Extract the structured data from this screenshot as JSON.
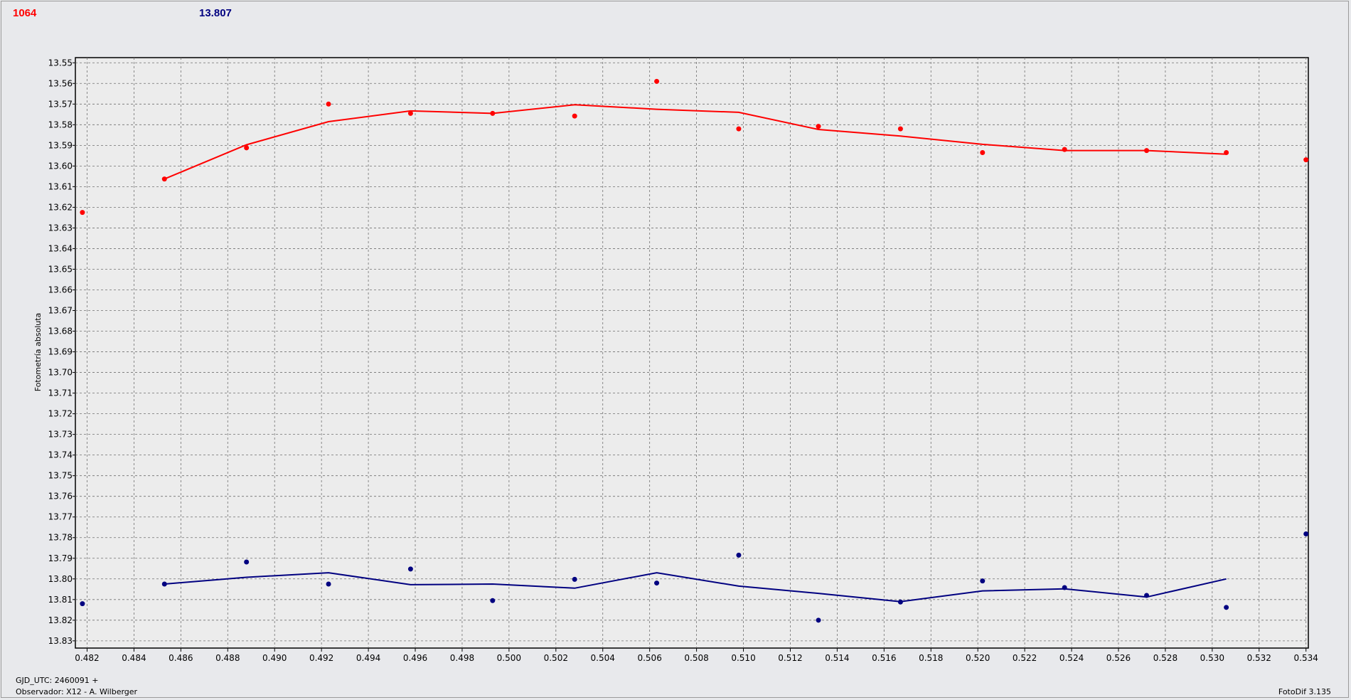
{
  "header": {
    "red_value": "1064",
    "blue_value": "13.807"
  },
  "footer": {
    "gjd": "GJD_UTC: 2460091 +",
    "observer": "Observador: X12 - A. Wilberger",
    "version": "FotoDif 3.135"
  },
  "chart_data": {
    "type": "scatter",
    "title": "",
    "xlabel": "",
    "ylabel": "Fotometría absoluta",
    "xlim": [
      0.4815,
      0.5341
    ],
    "ylim": [
      13.5475,
      13.8335
    ],
    "y_inverted": true,
    "grid": true,
    "x_ticks": [
      "0.482",
      "0.484",
      "0.486",
      "0.488",
      "0.490",
      "0.492",
      "0.494",
      "0.496",
      "0.498",
      "0.500",
      "0.502",
      "0.504",
      "0.506",
      "0.508",
      "0.510",
      "0.512",
      "0.514",
      "0.516",
      "0.518",
      "0.520",
      "0.522",
      "0.524",
      "0.526",
      "0.528",
      "0.530",
      "0.532",
      "0.534"
    ],
    "y_ticks": [
      "13.55",
      "13.56",
      "13.57",
      "13.58",
      "13.59",
      "13.60",
      "13.61",
      "13.62",
      "13.63",
      "13.64",
      "13.65",
      "13.66",
      "13.67",
      "13.68",
      "13.69",
      "13.70",
      "13.71",
      "13.72",
      "13.73",
      "13.74",
      "13.75",
      "13.76",
      "13.77",
      "13.78",
      "13.79",
      "13.80",
      "13.81",
      "13.82",
      "13.83"
    ],
    "series": [
      {
        "color": "#ff0000",
        "points": [
          [
            0.4818,
            13.6225
          ],
          [
            0.4853,
            13.6063
          ],
          [
            0.4888,
            13.5912
          ],
          [
            0.4923,
            13.57
          ],
          [
            0.4958,
            13.5745
          ],
          [
            0.4993,
            13.5745
          ],
          [
            0.5028,
            13.5758
          ],
          [
            0.5063,
            13.559
          ],
          [
            0.5098,
            13.582
          ],
          [
            0.5132,
            13.5808
          ],
          [
            0.5167,
            13.582
          ],
          [
            0.5202,
            13.5935
          ],
          [
            0.5237,
            13.592
          ],
          [
            0.5272,
            13.5925
          ],
          [
            0.5306,
            13.5935
          ],
          [
            0.534,
            13.597
          ]
        ],
        "line": [
          [
            0.4853,
            13.6063
          ],
          [
            0.4888,
            13.5897
          ],
          [
            0.4923,
            13.5785
          ],
          [
            0.4958,
            13.5733
          ],
          [
            0.4993,
            13.5745
          ],
          [
            0.5028,
            13.5703
          ],
          [
            0.5063,
            13.5725
          ],
          [
            0.5098,
            13.574
          ],
          [
            0.5132,
            13.5823
          ],
          [
            0.5167,
            13.5855
          ],
          [
            0.5202,
            13.5895
          ],
          [
            0.5237,
            13.5925
          ],
          [
            0.5272,
            13.5925
          ],
          [
            0.5306,
            13.5943
          ]
        ]
      },
      {
        "color": "#000080",
        "points": [
          [
            0.4818,
            13.812
          ],
          [
            0.4853,
            13.8025
          ],
          [
            0.4888,
            13.7918
          ],
          [
            0.4923,
            13.8025
          ],
          [
            0.4958,
            13.7952
          ],
          [
            0.4993,
            13.8105
          ],
          [
            0.5028,
            13.8002
          ],
          [
            0.5063,
            13.802
          ],
          [
            0.5098,
            13.7885
          ],
          [
            0.5132,
            13.82
          ],
          [
            0.5167,
            13.8112
          ],
          [
            0.5202,
            13.801
          ],
          [
            0.5237,
            13.8042
          ],
          [
            0.5272,
            13.808
          ],
          [
            0.5306,
            13.8138
          ],
          [
            0.534,
            13.7782
          ]
        ],
        "line": [
          [
            0.4853,
            13.8025
          ],
          [
            0.4888,
            13.7992
          ],
          [
            0.4923,
            13.797
          ],
          [
            0.4958,
            13.8028
          ],
          [
            0.4993,
            13.8025
          ],
          [
            0.5028,
            13.8045
          ],
          [
            0.5063,
            13.797
          ],
          [
            0.5098,
            13.8035
          ],
          [
            0.5132,
            13.807
          ],
          [
            0.5167,
            13.811
          ],
          [
            0.5202,
            13.8058
          ],
          [
            0.5237,
            13.8048
          ],
          [
            0.5272,
            13.8088
          ],
          [
            0.5306,
            13.8
          ]
        ]
      }
    ]
  }
}
